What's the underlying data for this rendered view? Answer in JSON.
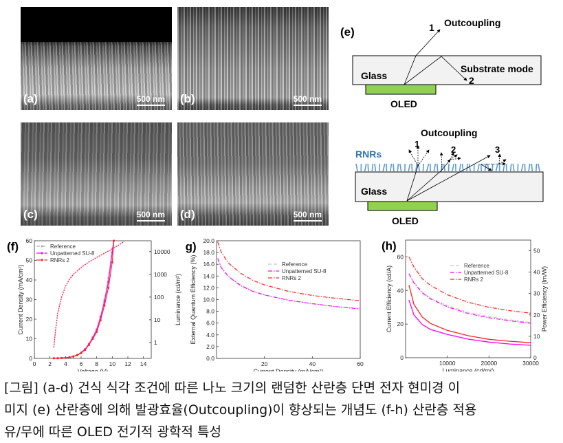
{
  "sem_panels": [
    {
      "label": "(a)",
      "scale_bar": "500 nm"
    },
    {
      "label": "(b)",
      "scale_bar": "500 nm"
    },
    {
      "label": "(c)",
      "scale_bar": "500 nm"
    },
    {
      "label": "(d)",
      "scale_bar": "500 nm"
    }
  ],
  "diagram": {
    "label": "(e)",
    "top": {
      "outcoupling": "Outcoupling",
      "ray1": "1",
      "ray2": "2",
      "substrate_mode": "Substrate mode",
      "glass": "Glass",
      "oled": "OLED"
    },
    "bottom": {
      "outcoupling": "Outcoupling",
      "ray1": "1",
      "ray2": "2",
      "ray3": "3",
      "rnrs": "RNRs",
      "glass": "Glass",
      "oled": "OLED"
    },
    "colors": {
      "glass": "#f2f2f2",
      "oled": "#92d050",
      "rnrs": "#5b9bd5"
    }
  },
  "chart_data": [
    {
      "type": "line",
      "panel": "(f)",
      "xlabel": "Voltage (V)",
      "ylabel": "Current Density (mA/cm²)",
      "y2label": "Luminance (cd/m²)",
      "xlim": [
        0,
        15
      ],
      "xticks": [
        "0",
        "2",
        "4",
        "6",
        "8",
        "10",
        "12",
        "14"
      ],
      "ylim": [
        0,
        60
      ],
      "yticks": [
        "0",
        "10",
        "20",
        "30",
        "40",
        "50",
        "60"
      ],
      "y2scale": "log",
      "y2lim": [
        0.2,
        30000
      ],
      "y2ticks": [
        "1",
        "10",
        "100",
        "1000",
        "10000"
      ],
      "legend": "top-left",
      "series": [
        {
          "name": "Reference",
          "color": "#b0b0b0",
          "current_density": {
            "x": [
              2.5,
              3,
              3.5,
              4,
              4.5,
              5,
              5.5,
              6,
              6.5,
              7,
              7.5,
              8,
              8.5,
              9,
              9.5,
              10,
              10.2
            ],
            "y": [
              0.1,
              0.1,
              0.2,
              0.3,
              0.6,
              1,
              1.8,
              3,
              4.8,
              7.5,
              11,
              15,
              21.5,
              30,
              41,
              56,
              60
            ]
          },
          "luminance": {
            "x": [
              2.5,
              2.7,
              3,
              3.5,
              4,
              4.5,
              5,
              6,
              7,
              8,
              9,
              10,
              11,
              11.5
            ],
            "y": [
              0.6,
              3,
              20,
              100,
              300,
              600,
              1000,
              2000,
              3500,
              5500,
              8500,
              13000,
              21000,
              28000
            ]
          }
        },
        {
          "name": "Unpatterned SU-8",
          "color": "#ff00ff",
          "current_density": {
            "x": [
              2.5,
              3,
              3.5,
              4,
              4.5,
              5,
              5.5,
              6,
              6.5,
              7,
              7.5,
              8,
              8.5,
              9,
              9.5,
              10,
              10.2
            ],
            "y": [
              0.1,
              0.1,
              0.2,
              0.3,
              0.6,
              1,
              1.7,
              2.9,
              4.6,
              7.2,
              10.5,
              14.5,
              21,
              29,
              39,
              54,
              60
            ]
          },
          "luminance": {
            "x": [
              2.5,
              2.7,
              3,
              3.5,
              4,
              4.5,
              5,
              6,
              7,
              8,
              9,
              10,
              11,
              11.5
            ],
            "y": [
              0.6,
              3,
              20,
              100,
              300,
              600,
              1000,
              2000,
              3500,
              5500,
              8500,
              13000,
              21000,
              28000
            ]
          }
        },
        {
          "name": "RNRs 2",
          "color": "#ff2020",
          "current_density": {
            "x": [
              2.5,
              3,
              3.5,
              4,
              4.5,
              5,
              5.5,
              6,
              6.5,
              7,
              7.5,
              8,
              8.5,
              9,
              9.5,
              10,
              10.2
            ],
            "y": [
              0.1,
              0.1,
              0.2,
              0.3,
              0.5,
              0.9,
              1.6,
              2.7,
              4.3,
              6.8,
              10,
              13.5,
              19.5,
              27,
              36,
              49,
              60
            ]
          },
          "luminance": {
            "x": [
              2.5,
              2.7,
              3,
              3.5,
              4,
              4.5,
              5,
              6,
              7,
              8,
              9,
              10,
              11,
              11.5
            ],
            "y": [
              0.6,
              3,
              20,
              100,
              300,
              600,
              1000,
              2000,
              3500,
              5500,
              8500,
              13000,
              21000,
              28000
            ]
          }
        }
      ]
    },
    {
      "type": "line",
      "panel": "(g)",
      "xlabel": "Current Density (mA/cm²)",
      "ylabel": "External Quantum Efficiency (%)",
      "xlim": [
        0,
        60
      ],
      "xticks": [
        "20",
        "40",
        "60"
      ],
      "ylim": [
        0,
        20
      ],
      "yticks": [
        "0.0",
        "2.0",
        "4.0",
        "6.0",
        "8.0",
        "10.0",
        "12.0",
        "14.0",
        "16.0",
        "18.0",
        "20.0"
      ],
      "legend": "center-right",
      "series": [
        {
          "name": "Reference",
          "color": "#c8c8c8",
          "x": [
            0.5,
            2,
            5,
            10,
            15,
            20,
            30,
            40,
            50,
            60
          ],
          "y": [
            17.0,
            15.5,
            14.0,
            12.5,
            11.5,
            10.8,
            9.9,
            9.3,
            8.8,
            8.5
          ]
        },
        {
          "name": "Unpatterned SU-8",
          "color": "#ff00ff",
          "x": [
            0.5,
            2,
            5,
            10,
            15,
            20,
            30,
            40,
            50,
            60
          ],
          "y": [
            17.0,
            15.4,
            13.9,
            12.4,
            11.4,
            10.8,
            9.9,
            9.3,
            8.8,
            8.4
          ]
        },
        {
          "name": "RNRs 2",
          "color": "#ff2020",
          "x": [
            0.5,
            2,
            5,
            10,
            15,
            20,
            30,
            40,
            50,
            60
          ],
          "y": [
            19.8,
            18.0,
            16.2,
            14.5,
            13.3,
            12.5,
            11.4,
            10.7,
            10.2,
            9.8
          ]
        }
      ]
    },
    {
      "type": "line",
      "panel": "(h)",
      "xlabel": "Luminance (cd/m²)",
      "ylabel": "Current Efficiency (cd/A)",
      "y2label": "Power Efficiency (lm/W)",
      "xlim": [
        0,
        30000
      ],
      "xticks": [
        "10000",
        "20000",
        "30000"
      ],
      "ylim": [
        0,
        70
      ],
      "yticks": [
        "0",
        "20",
        "40",
        "60"
      ],
      "y2lim": [
        0,
        55
      ],
      "y2ticks": [
        "0",
        "10",
        "20",
        "30",
        "40",
        "50"
      ],
      "legend": "center-right",
      "series": [
        {
          "name": "Reference",
          "color": "#c8c8c8",
          "current_efficiency": {
            "x": [
              800,
              2000,
              4000,
              6000,
              10000,
              15000,
              20000,
              25000,
              30000
            ],
            "y": [
              50,
              45,
              39,
              35.5,
              31,
              27,
              24.5,
              22.5,
              21
            ]
          },
          "power_efficiency": {
            "x": [
              800,
              2000,
              4000,
              6000,
              10000,
              15000,
              20000,
              25000,
              30000
            ],
            "y": [
              27,
              20,
              15.5,
              13.2,
              10.9,
              8.7,
              7.3,
              6.4,
              5.8
            ]
          }
        },
        {
          "name": "Unpatterned SU-8",
          "color": "#ff00ff",
          "current_efficiency": {
            "x": [
              800,
              2000,
              4000,
              6000,
              10000,
              15000,
              20000,
              25000,
              30000
            ],
            "y": [
              50,
              44.5,
              38.5,
              35,
              30.3,
              26.3,
              23.8,
              22,
              20.5
            ]
          },
          "power_efficiency": {
            "x": [
              800,
              2000,
              4000,
              6000,
              10000,
              15000,
              20000,
              25000,
              30000
            ],
            "y": [
              27,
              20,
              15.5,
              13.2,
              10.9,
              8.7,
              7.3,
              6.4,
              5.8
            ]
          }
        },
        {
          "name": "RNRs 2",
          "color": "#ff2020",
          "current_efficiency": {
            "x": [
              800,
              2000,
              4000,
              6000,
              10000,
              15000,
              20000,
              25000,
              30000
            ],
            "y": [
              60,
              54,
              47,
              43,
              37.5,
              33,
              30,
              28,
              26.5
            ]
          },
          "power_efficiency": {
            "x": [
              800,
              2000,
              4000,
              6000,
              10000,
              15000,
              20000,
              25000,
              30000
            ],
            "y": [
              34,
              25,
              19,
              16,
              12.8,
              10.3,
              8.6,
              7.7,
              7.0
            ]
          }
        }
      ]
    }
  ],
  "caption": {
    "lines": [
      "[그림] (a-d) 건식 식각 조건에 따른 나노 크기의 랜덤한 산란층 단면 전자 현미경 이",
      "미지 (e) 산란층에 의해 발광효율(Outcoupling)이 향상되는 개념도 (f-h) 산란층 적용",
      "유/무에 따른 OLED 전기적 광학적 특성"
    ]
  }
}
